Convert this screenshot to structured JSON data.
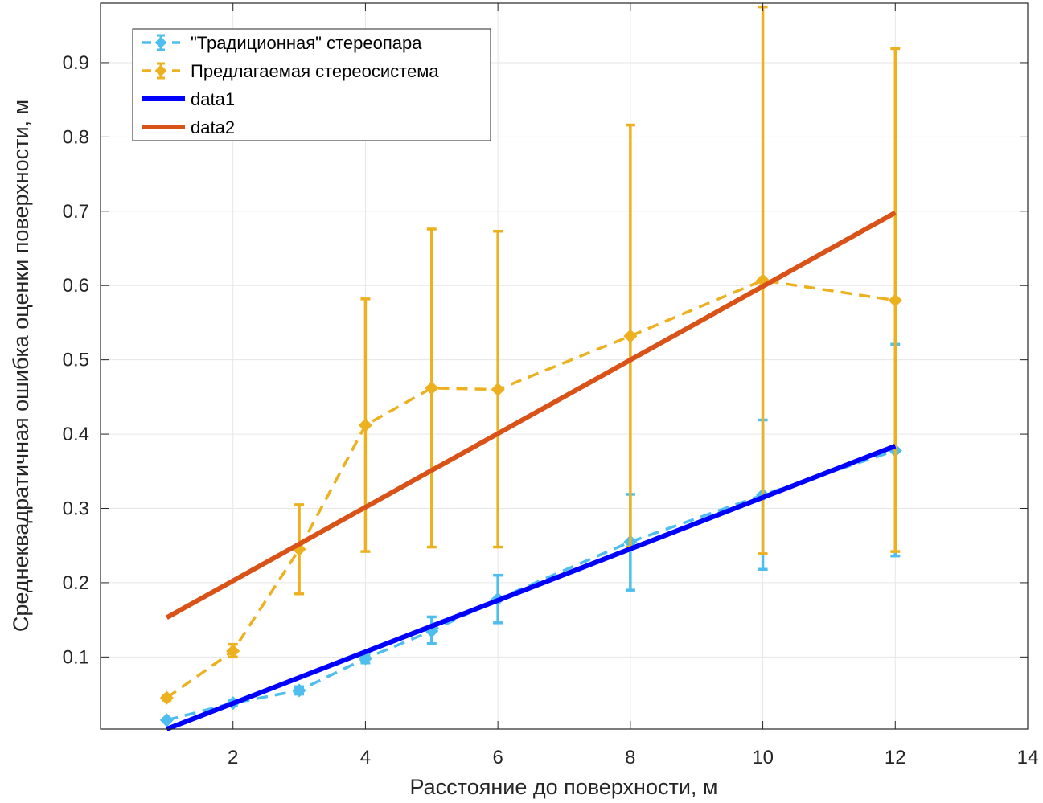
{
  "chart_data": {
    "type": "line",
    "title": "",
    "xlabel": "Расстояние до поверхности, м",
    "ylabel": "Среднеквадратичная ошибка оценки  поверхности, м",
    "xlim": [
      0,
      14
    ],
    "ylim": [
      0.003,
      0.98
    ],
    "xticks": [
      2,
      4,
      6,
      8,
      10,
      12,
      14
    ],
    "yticks": [
      0.1,
      0.2,
      0.3,
      0.4,
      0.5,
      0.6,
      0.7,
      0.8,
      0.9
    ],
    "grid": true,
    "legend_position": "top-left",
    "series": [
      {
        "name": "\"Традиционная\" стереопара",
        "style": "dashed-errorbar",
        "marker": "diamond",
        "color": "#4DBEEE",
        "x": [
          1,
          2,
          3,
          4,
          5,
          6,
          8,
          10,
          12
        ],
        "y": [
          0.015,
          0.038,
          0.055,
          0.098,
          0.135,
          0.178,
          0.255,
          0.318,
          0.378
        ],
        "err_low": [
          0.013,
          0.035,
          0.05,
          0.092,
          0.118,
          0.146,
          0.19,
          0.218,
          0.236
        ],
        "err_high": [
          0.017,
          0.041,
          0.06,
          0.104,
          0.154,
          0.21,
          0.319,
          0.419,
          0.521
        ]
      },
      {
        "name": "Предлагаемая стереосистема",
        "style": "dashed-errorbar",
        "marker": "diamond",
        "color": "#EDB120",
        "x": [
          1,
          2,
          3,
          4,
          5,
          6,
          8,
          10,
          12
        ],
        "y": [
          0.045,
          0.108,
          0.245,
          0.412,
          0.462,
          0.46,
          0.532,
          0.607,
          0.58
        ],
        "err_low": [
          0.042,
          0.1,
          0.185,
          0.242,
          0.248,
          0.248,
          0.248,
          0.239,
          0.242
        ],
        "err_high": [
          0.048,
          0.117,
          0.305,
          0.582,
          0.676,
          0.673,
          0.816,
          0.975,
          0.919
        ]
      },
      {
        "name": "data1",
        "style": "solid",
        "color": "#0000FF",
        "x": [
          1,
          12
        ],
        "y": [
          0.003,
          0.384
        ]
      },
      {
        "name": "data2",
        "style": "solid",
        "color": "#D95319",
        "x": [
          1,
          12
        ],
        "y": [
          0.153,
          0.698
        ]
      }
    ]
  }
}
